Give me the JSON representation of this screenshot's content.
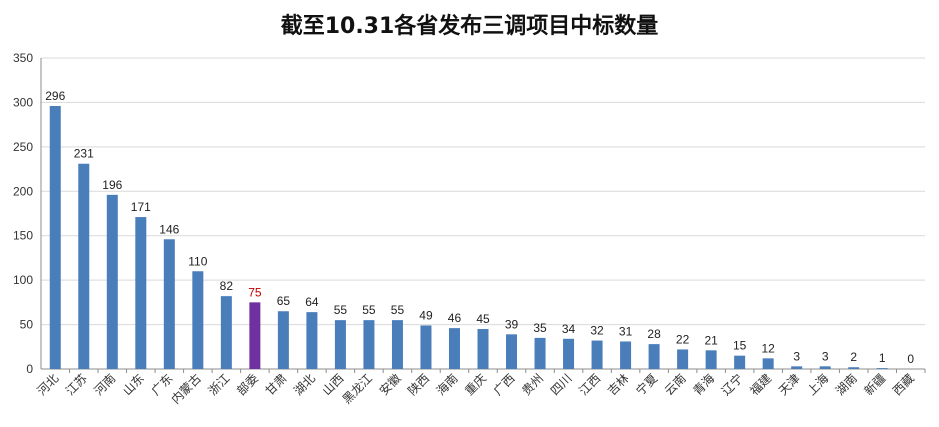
{
  "chart_data": {
    "type": "bar",
    "title": "截至10.31各省发布三调项目中标数量",
    "xlabel": "",
    "ylabel": "",
    "ylim": [
      0,
      350
    ],
    "yticks": [
      0,
      50,
      100,
      150,
      200,
      250,
      300,
      350
    ],
    "grid": true,
    "legend": "none",
    "colors": {
      "default": "#4a7ebb",
      "highlight": "#7030a0",
      "highlight_label": "#c00000"
    },
    "highlight_category": "部委",
    "categories": [
      "河北",
      "江苏",
      "河南",
      "山东",
      "广东",
      "内蒙古",
      "浙江",
      "部委",
      "甘肃",
      "湖北",
      "山西",
      "黑龙江",
      "安徽",
      "陕西",
      "海南",
      "重庆",
      "广西",
      "贵州",
      "四川",
      "江西",
      "吉林",
      "宁夏",
      "云南",
      "青海",
      "辽宁",
      "福建",
      "天津",
      "上海",
      "湖南",
      "新疆",
      "西藏"
    ],
    "values": [
      296,
      231,
      196,
      171,
      146,
      110,
      82,
      75,
      65,
      64,
      55,
      55,
      55,
      49,
      46,
      45,
      39,
      35,
      34,
      32,
      31,
      28,
      22,
      21,
      15,
      12,
      3,
      3,
      2,
      1,
      0
    ]
  }
}
